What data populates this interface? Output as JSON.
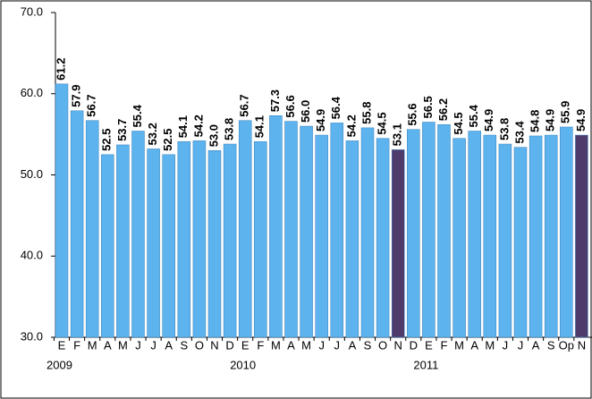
{
  "chart_data": {
    "type": "bar",
    "categories": [
      "E",
      "F",
      "M",
      "A",
      "M",
      "J",
      "J",
      "A",
      "S",
      "O",
      "N",
      "D",
      "E",
      "F",
      "M",
      "A",
      "M",
      "J",
      "J",
      "A",
      "S",
      "O",
      "N",
      "D",
      "E",
      "F",
      "M",
      "A",
      "M",
      "J",
      "J",
      "A",
      "S",
      "Op",
      "N"
    ],
    "values": [
      61.2,
      57.9,
      56.7,
      52.5,
      53.7,
      55.4,
      53.2,
      52.5,
      54.1,
      54.2,
      53.0,
      53.8,
      56.7,
      54.1,
      57.3,
      56.6,
      56.0,
      54.9,
      56.4,
      54.2,
      55.8,
      54.5,
      53.1,
      55.6,
      56.5,
      56.2,
      54.5,
      55.4,
      54.9,
      53.8,
      53.4,
      54.8,
      54.9,
      55.9,
      54.9
    ],
    "value_labels": [
      "61.2",
      "57.9",
      "56.7",
      "52.5",
      "53.7",
      "55.4",
      "53.2",
      "52.5",
      "54.1",
      "54.2",
      "53.0",
      "53.8",
      "56.7",
      "54.1",
      "57.3",
      "56.6",
      "56.0",
      "54.9",
      "56.4",
      "54.2",
      "55.8",
      "54.5",
      "53.1",
      "55.6",
      "56.5",
      "56.2",
      "54.5",
      "55.4",
      "54.9",
      "53.8",
      "53.4",
      "54.8",
      "54.9",
      "55.9",
      "54.9"
    ],
    "colors": [
      "#5cb3ee",
      "#5cb3ee",
      "#5cb3ee",
      "#5cb3ee",
      "#5cb3ee",
      "#5cb3ee",
      "#5cb3ee",
      "#5cb3ee",
      "#5cb3ee",
      "#5cb3ee",
      "#5cb3ee",
      "#5cb3ee",
      "#5cb3ee",
      "#5cb3ee",
      "#5cb3ee",
      "#5cb3ee",
      "#5cb3ee",
      "#5cb3ee",
      "#5cb3ee",
      "#5cb3ee",
      "#5cb3ee",
      "#5cb3ee",
      "#4e3b6c",
      "#5cb3ee",
      "#5cb3ee",
      "#5cb3ee",
      "#5cb3ee",
      "#5cb3ee",
      "#5cb3ee",
      "#5cb3ee",
      "#5cb3ee",
      "#5cb3ee",
      "#5cb3ee",
      "#5cb3ee",
      "#4e3b6c"
    ],
    "year_labels": [
      "2009",
      "2010",
      "2011"
    ],
    "ylim": [
      30,
      70
    ],
    "yticks": [
      {
        "value": 30,
        "label": "30.0"
      },
      {
        "value": 40,
        "label": "40.0"
      },
      {
        "value": 50,
        "label": "50.0"
      },
      {
        "value": 60,
        "label": "60.0"
      },
      {
        "value": 70,
        "label": "70.0"
      }
    ],
    "grid": false
  }
}
